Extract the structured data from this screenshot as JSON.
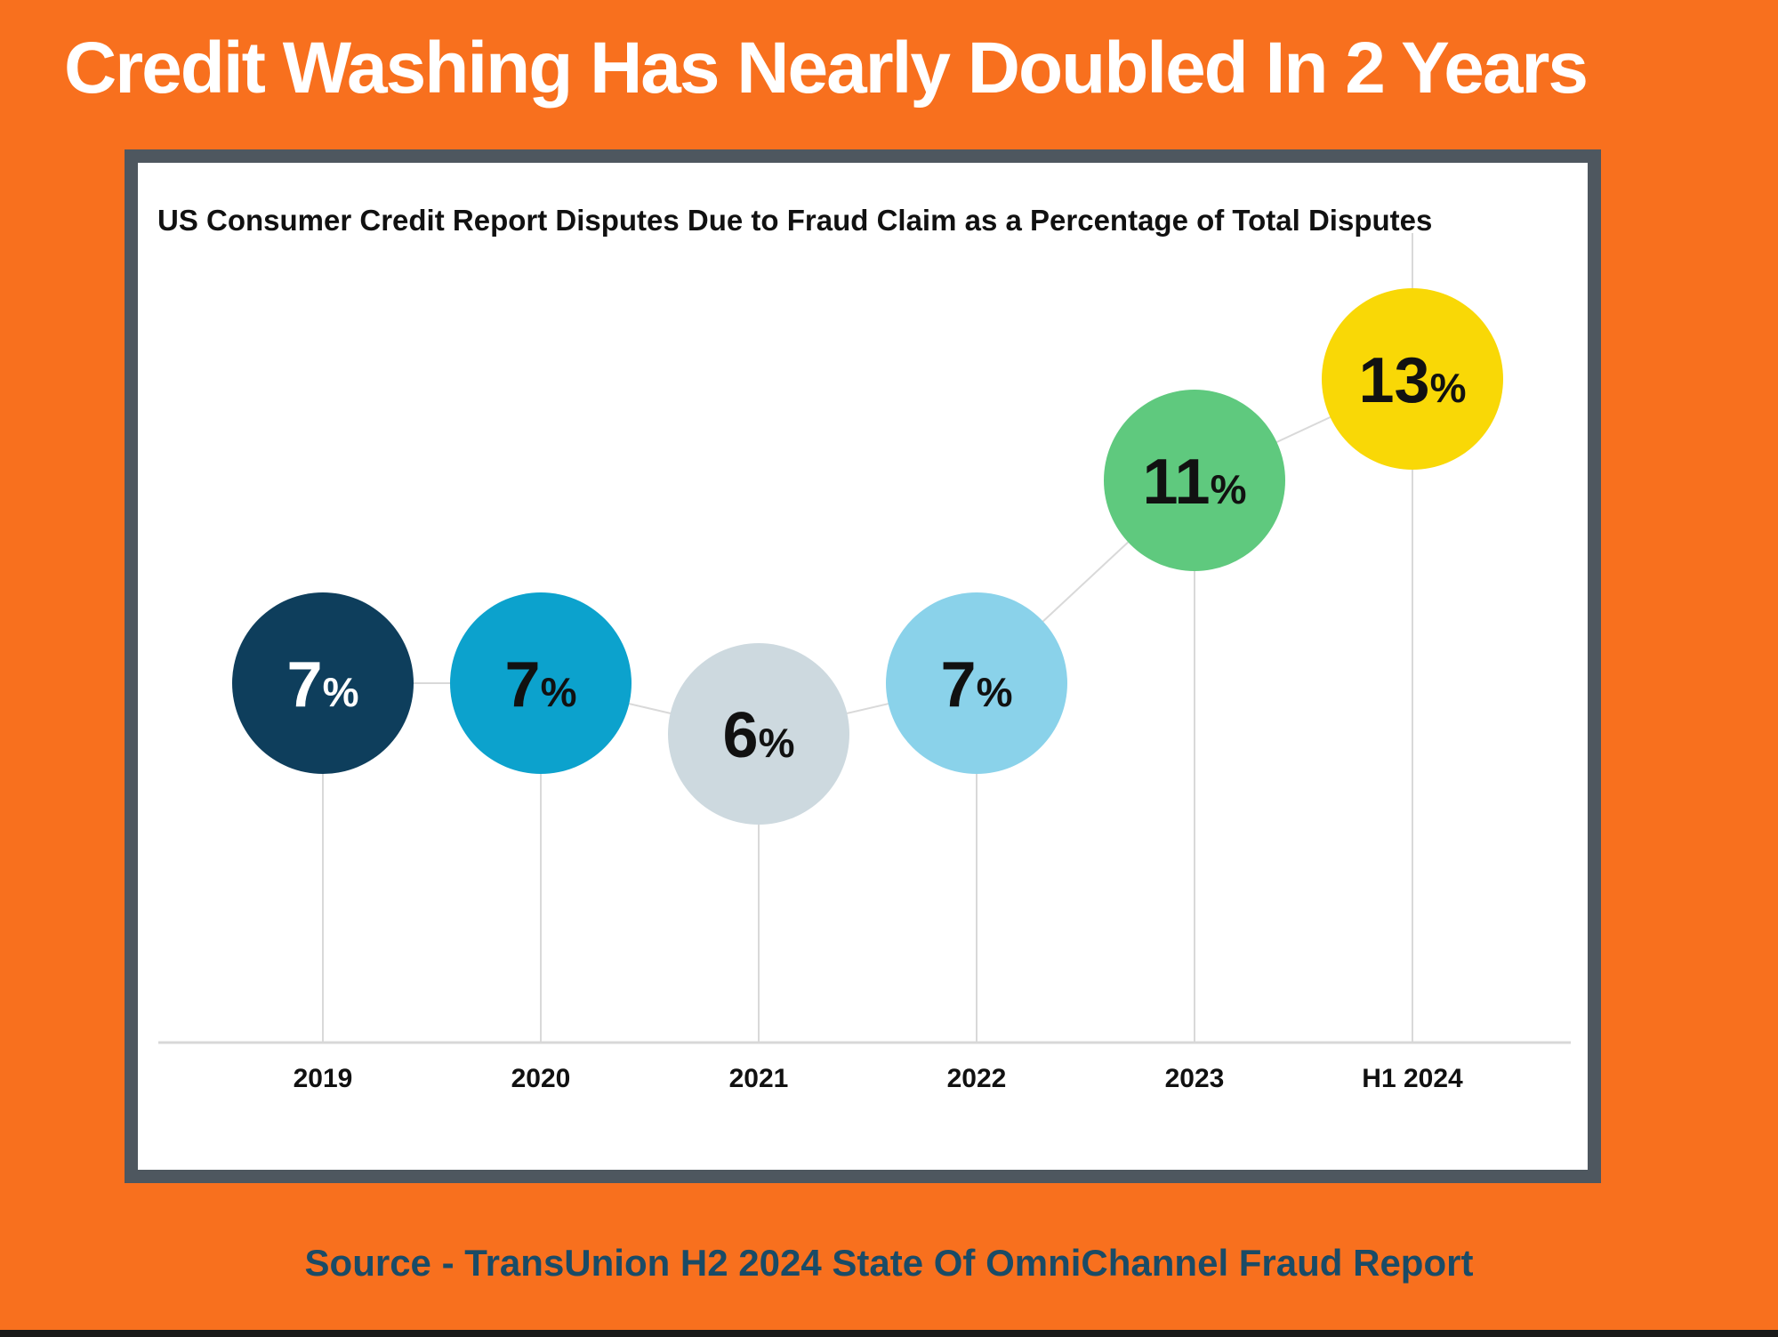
{
  "title": "Credit Washing Has Nearly Doubled In 2 Years",
  "source_line": "Source - TransUnion H2 2024 State Of OmniChannel Fraud Report",
  "colors": {
    "background": "#F8701E",
    "panel_border": "#4E575F",
    "panel_background": "#FFFFFF",
    "title_text": "#FFFFFF",
    "subtitle_text": "#111111",
    "grid_line": "#D9D9D9",
    "axis_line": "#D8D8D8",
    "tick_label": "#111111",
    "source_text": "#1A4B66",
    "bottom_strip": "#1A1A1A"
  },
  "chart_data": {
    "type": "line",
    "subtype": "bubble-points-with-stems",
    "title": "US Consumer Credit Report Disputes Due to Fraud Claim as a Percentage of Total Disputes",
    "categories": [
      "2019",
      "2020",
      "2021",
      "2022",
      "2023",
      "H1 2024"
    ],
    "values": [
      7,
      7,
      6,
      7,
      11,
      13
    ],
    "unit": "%",
    "ylim": [
      0,
      17
    ],
    "xlabel": "",
    "ylabel": "",
    "grid": "vertical-stems-only",
    "legend": "none",
    "point_colors": [
      "#0E3E5C",
      "#0CA2CD",
      "#CDD9DF",
      "#8AD2EA",
      "#5FC97E",
      "#F9D806"
    ],
    "point_label_colors": [
      "#FFFFFF",
      "#111111",
      "#111111",
      "#111111",
      "#111111",
      "#111111"
    ],
    "connector_color": "#D9D9D9"
  }
}
